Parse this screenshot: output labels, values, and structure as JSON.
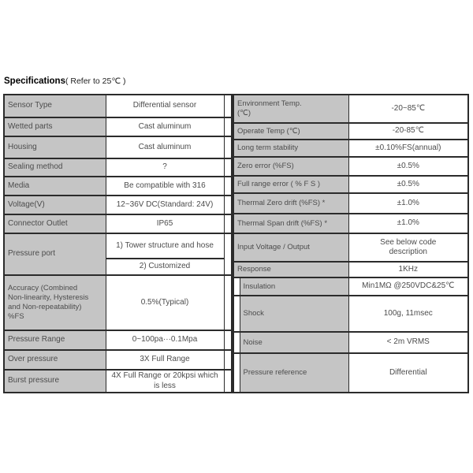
{
  "page": {
    "title_bold": "Specifications",
    "title_rest": "( Refer to 25℃ )"
  },
  "colors": {
    "label_cell_bg": "#c5c5c5",
    "border": "#2b2b2b",
    "text": "#4c4c4c"
  },
  "left_table": {
    "rows": [
      {
        "label": "Sensor Type",
        "value": "Differential sensor",
        "h": 29
      },
      {
        "label": "Wetted parts",
        "value": "Cast aluminum",
        "h": 24
      },
      {
        "label": "Housing",
        "value": "Cast aluminum",
        "h": 28
      },
      {
        "label": "Sealing method",
        "value": "?",
        "h": 23
      },
      {
        "label": "Media",
        "value": "Be compatible with 316",
        "h": 24
      },
      {
        "label": "Voltage(V)",
        "value": "12~36V DC(Standard: 24V)",
        "h": 24
      },
      {
        "label": "Connector Outlet",
        "value": "IP65",
        "h": 24
      },
      {
        "label": "Pressure port",
        "values": [
          "1) Tower structure and hose",
          "2) Customized"
        ],
        "heights": [
          32,
          21
        ]
      },
      {
        "label": "Accuracy (Combined\nNon-linearity, Hysteresis\nand Non-repeatability)\n%FS",
        "value": "0.5%(Typical)",
        "h": 70,
        "small": true
      },
      {
        "label": "Pressure Range",
        "value": "0~100pa···0.1Mpa",
        "h": 25
      },
      {
        "label": "Over pressure",
        "value": "3X Full Range",
        "h": 25
      },
      {
        "label": "Burst pressure",
        "value": "4X Full Range or 20kpsi which\nis less",
        "h": 29
      }
    ]
  },
  "right_table": {
    "rows": [
      {
        "label": "Environment Temp.\n(℃)",
        "value": "-20~85℃",
        "h": 36
      },
      {
        "label": "Operate Temp (℃)",
        "value": "-20-85℃",
        "h": 21
      },
      {
        "label": "Long term stability",
        "value": "±0.10%FS(annual)",
        "h": 22
      },
      {
        "label": "Zero error (%FS)",
        "value": "±0.5%",
        "h": 24
      },
      {
        "label": "Full range error ( % F S )",
        "value": "±0.5%",
        "h": 22
      },
      {
        "label": "Thermal Zero drift (%FS) *",
        "value": "±1.0%",
        "h": 26
      },
      {
        "label": "Thermal Span drift (%FS) *",
        "value": "±1.0%",
        "h": 25
      },
      {
        "label": "Input Voltage / Output",
        "value": "See below code\ndescription",
        "h": 36
      },
      {
        "label": "Response",
        "value": "1KHz",
        "h": 20
      },
      {
        "label": "Insulation",
        "value": "Min1MΩ @250VDC&25℃",
        "h": 23,
        "notch": true
      },
      {
        "label": "Shock",
        "value": "100g, 11msec",
        "h": 46,
        "notch": true
      },
      {
        "label": "Noise",
        "value": "< 2m VRMS",
        "h": 27,
        "notch": true
      },
      {
        "label": "Pressure reference",
        "value": "Differential",
        "h": 50,
        "notch": true
      }
    ]
  }
}
